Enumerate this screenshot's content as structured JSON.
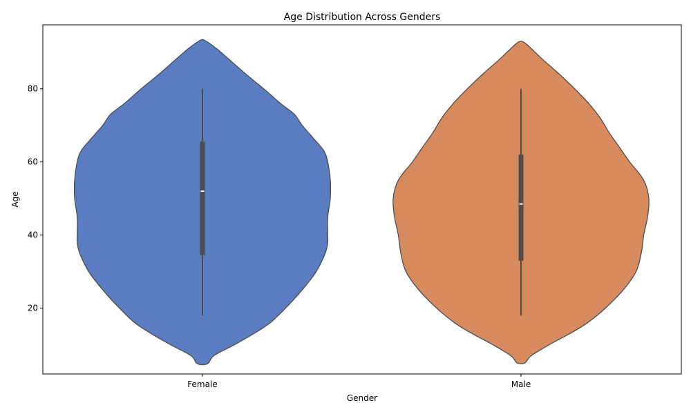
{
  "chart_data": {
    "type": "violin",
    "title": "Age Distribution Across Genders",
    "xlabel": "Gender",
    "ylabel": "Age",
    "ylim": [
      2,
      97.5
    ],
    "yticks": [
      20,
      40,
      60,
      80
    ],
    "grid": false,
    "categories": [
      "Female",
      "Male"
    ],
    "colors": {
      "Female": "#5a7cc1",
      "Male": "#d88a5f",
      "outline": "#4d4d4d",
      "box": "#4d4d4d",
      "median": "#ffffff"
    },
    "violins": [
      {
        "category": "Female",
        "kde_range": [
          4.8,
          93.2
        ],
        "density_profile": [
          [
            4.8,
            0.04
          ],
          [
            7,
            0.09
          ],
          [
            10,
            0.25
          ],
          [
            13,
            0.4
          ],
          [
            16,
            0.53
          ],
          [
            20,
            0.65
          ],
          [
            25,
            0.78
          ],
          [
            30,
            0.89
          ],
          [
            35,
            0.96
          ],
          [
            38,
            0.98
          ],
          [
            40,
            0.98
          ],
          [
            45,
            0.98
          ],
          [
            50,
            1.0
          ],
          [
            55,
            1.0
          ],
          [
            60,
            0.98
          ],
          [
            63,
            0.95
          ],
          [
            66,
            0.88
          ],
          [
            70,
            0.78
          ],
          [
            73,
            0.72
          ],
          [
            76,
            0.61
          ],
          [
            80,
            0.48
          ],
          [
            84,
            0.34
          ],
          [
            88,
            0.21
          ],
          [
            91,
            0.11
          ],
          [
            93.2,
            0.02
          ]
        ],
        "q1": 34.5,
        "median": 52,
        "q3": 65.5,
        "whisker_low": 18,
        "whisker_high": 80
      },
      {
        "category": "Male",
        "kde_range": [
          5,
          92.8
        ],
        "density_profile": [
          [
            5,
            0.03
          ],
          [
            7,
            0.08
          ],
          [
            10,
            0.22
          ],
          [
            13,
            0.38
          ],
          [
            16,
            0.52
          ],
          [
            20,
            0.66
          ],
          [
            25,
            0.8
          ],
          [
            30,
            0.9
          ],
          [
            35,
            0.94
          ],
          [
            40,
            0.96
          ],
          [
            45,
            0.99
          ],
          [
            50,
            1.0
          ],
          [
            55,
            0.96
          ],
          [
            60,
            0.85
          ],
          [
            64,
            0.77
          ],
          [
            68,
            0.69
          ],
          [
            72,
            0.62
          ],
          [
            76,
            0.53
          ],
          [
            80,
            0.42
          ],
          [
            84,
            0.3
          ],
          [
            88,
            0.17
          ],
          [
            91,
            0.08
          ],
          [
            92.8,
            0.02
          ]
        ],
        "q1": 33,
        "median": 48.5,
        "q3": 62,
        "whisker_low": 18,
        "whisker_high": 80
      }
    ]
  }
}
